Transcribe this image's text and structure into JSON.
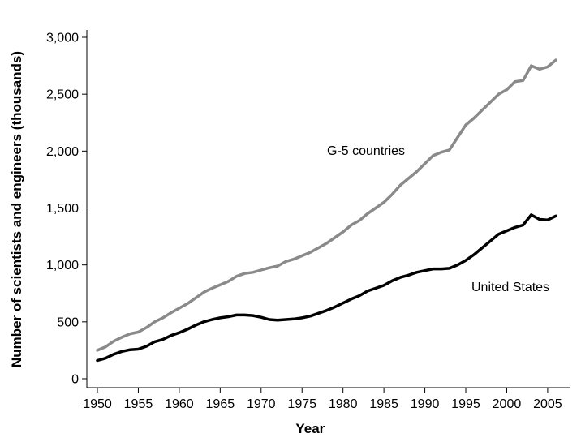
{
  "chart_data": {
    "type": "line",
    "title": "",
    "xlabel": "Year",
    "ylabel": "Number of scientists and engineers (thousands)",
    "xlim": [
      1950,
      2006
    ],
    "ylim": [
      0,
      3000
    ],
    "x_ticks": [
      1950,
      1955,
      1960,
      1965,
      1970,
      1975,
      1980,
      1985,
      1990,
      1995,
      2000,
      2005
    ],
    "x_tick_labels": [
      "1950",
      "1955",
      "1960",
      "1965",
      "1970",
      "1975",
      "1980",
      "1985",
      "1990",
      "1995",
      "2000",
      "2005"
    ],
    "y_ticks": [
      0,
      500,
      1000,
      1500,
      2000,
      2500,
      3000
    ],
    "y_tick_labels": [
      "0",
      "500",
      "1,000",
      "1,500",
      "2,000",
      "2,500",
      "3,000"
    ],
    "grid": false,
    "legend": "none",
    "series": [
      {
        "name": "G-5 countries",
        "color": "#8a8a8a",
        "x": [
          1950,
          1951,
          1952,
          1953,
          1954,
          1955,
          1956,
          1957,
          1958,
          1959,
          1960,
          1961,
          1962,
          1963,
          1964,
          1965,
          1966,
          1967,
          1968,
          1969,
          1970,
          1971,
          1972,
          1973,
          1974,
          1975,
          1976,
          1977,
          1978,
          1979,
          1980,
          1981,
          1982,
          1983,
          1984,
          1985,
          1986,
          1987,
          1988,
          1989,
          1990,
          1991,
          1992,
          1993,
          1994,
          1995,
          1996,
          1997,
          1998,
          1999,
          2000,
          2001,
          2002,
          2003,
          2004,
          2005,
          2006
        ],
        "values": [
          250,
          280,
          330,
          365,
          395,
          410,
          450,
          500,
          535,
          580,
          620,
          660,
          710,
          760,
          795,
          825,
          855,
          900,
          925,
          935,
          955,
          975,
          990,
          1030,
          1050,
          1080,
          1110,
          1150,
          1190,
          1240,
          1290,
          1350,
          1390,
          1450,
          1500,
          1550,
          1620,
          1700,
          1760,
          1820,
          1890,
          1960,
          1990,
          2010,
          2120,
          2230,
          2290,
          2360,
          2430,
          2500,
          2540,
          2610,
          2620,
          2750,
          2720,
          2740,
          2800
        ]
      },
      {
        "name": "United States",
        "color": "#000000",
        "x": [
          1950,
          1951,
          1952,
          1953,
          1954,
          1955,
          1956,
          1957,
          1958,
          1959,
          1960,
          1961,
          1962,
          1963,
          1964,
          1965,
          1966,
          1967,
          1968,
          1969,
          1970,
          1971,
          1972,
          1973,
          1974,
          1975,
          1976,
          1977,
          1978,
          1979,
          1980,
          1981,
          1982,
          1983,
          1984,
          1985,
          1986,
          1987,
          1988,
          1989,
          1990,
          1991,
          1992,
          1993,
          1994,
          1995,
          1996,
          1997,
          1998,
          1999,
          2000,
          2001,
          2002,
          2003,
          2004,
          2005,
          2006
        ],
        "values": [
          160,
          180,
          215,
          240,
          255,
          260,
          285,
          325,
          345,
          380,
          405,
          435,
          470,
          500,
          520,
          535,
          545,
          560,
          560,
          555,
          540,
          520,
          515,
          520,
          525,
          535,
          550,
          575,
          600,
          630,
          665,
          700,
          730,
          770,
          795,
          820,
          860,
          890,
          910,
          935,
          950,
          965,
          965,
          970,
          1000,
          1040,
          1090,
          1150,
          1210,
          1270,
          1300,
          1330,
          1350,
          1440,
          1400,
          1395,
          1430
        ]
      }
    ],
    "annotations": [
      {
        "text": "G-5 countries",
        "series": 0
      },
      {
        "text": "United States",
        "series": 1
      }
    ]
  }
}
